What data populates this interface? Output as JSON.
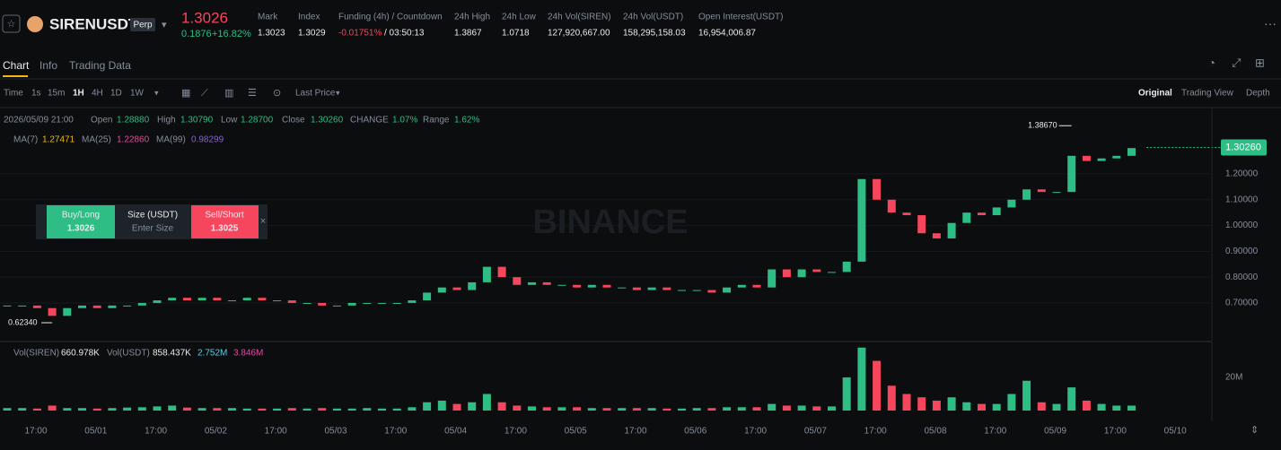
{
  "header": {
    "symbol": "SIRENUSDT",
    "tag": "Perp",
    "price": "1.3026",
    "change": "0.1876",
    "change_pct": "+16.82%",
    "stats": [
      {
        "label": "Mark",
        "value": "1.3023"
      },
      {
        "label": "Index",
        "value": "1.3029"
      },
      {
        "label": "Funding (4h) / Countdown",
        "value": "-0.01751%",
        "extra": "/ 03:50:13"
      },
      {
        "label": "24h High",
        "value": "1.3867"
      },
      {
        "label": "24h Low",
        "value": "1.0718"
      },
      {
        "label": "24h Vol(SIREN)",
        "value": "127,920,667.00"
      },
      {
        "label": "24h Vol(USDT)",
        "value": "158,295,158.03"
      },
      {
        "label": "Open Interest(USDT)",
        "value": "16,954,006.87"
      }
    ]
  },
  "tabs": [
    "Chart",
    "Info",
    "Trading Data"
  ],
  "toolbar": {
    "intervals": [
      "Time",
      "1s",
      "15m",
      "1H",
      "4H",
      "1D",
      "1W"
    ],
    "price_type": "Last Price",
    "views": [
      "Original",
      "Trading View",
      "Depth"
    ]
  },
  "legend": {
    "date": "2026/05/09 21:00",
    "open_label": "Open",
    "open": "1.28880",
    "high_label": "High",
    "high": "1.30790",
    "low_label": "Low",
    "low": "1.28700",
    "close_label": "Close",
    "close": "1.30260",
    "change_label": "CHANGE",
    "change": "1.07%",
    "range_label": "Range",
    "range": "1.62%",
    "ma7_label": "MA(7)",
    "ma7": "1.27471",
    "ma25_label": "MA(25)",
    "ma25": "1.22860",
    "ma99_label": "MA(99)",
    "ma99": "0.98299",
    "vol_label": "Vol(SIREN)",
    "vol": "660.978K",
    "volu_label": "Vol(USDT)",
    "volu": "858.437K",
    "vol_ma1": "2.752M",
    "vol_ma2": "3.846M"
  },
  "trade": {
    "buy": "Buy/Long",
    "buy_price": "1.3026",
    "size": "Size (USDT)",
    "placeholder": "Enter Size",
    "sell": "Sell/Short",
    "sell_price": "1.3025"
  },
  "watermark": "BINANCE",
  "chart": {
    "type": "candlestick",
    "closes": [
      0.69,
      0.69,
      0.68,
      0.65,
      0.68,
      0.69,
      0.68,
      0.69,
      0.69,
      0.7,
      0.71,
      0.72,
      0.71,
      0.72,
      0.71,
      0.71,
      0.72,
      0.71,
      0.71,
      0.7,
      0.7,
      0.69,
      0.69,
      0.7,
      0.7,
      0.7,
      0.7,
      0.71,
      0.74,
      0.76,
      0.75,
      0.78,
      0.84,
      0.8,
      0.77,
      0.78,
      0.77,
      0.77,
      0.76,
      0.77,
      0.76,
      0.76,
      0.75,
      0.76,
      0.75,
      0.75,
      0.75,
      0.74,
      0.76,
      0.77,
      0.76,
      0.83,
      0.8,
      0.83,
      0.82,
      0.82,
      0.86,
      1.18,
      1.1,
      1.05,
      1.04,
      0.97,
      0.95,
      1.01,
      1.05,
      1.04,
      1.07,
      1.1,
      1.14,
      1.13,
      1.13,
      1.27,
      1.25,
      1.26,
      1.27,
      1.3
    ],
    "volumes": [
      1500000,
      1500000,
      1200000,
      3000000,
      1500000,
      1500000,
      1200000,
      1500000,
      1800000,
      2000000,
      2500000,
      3000000,
      1800000,
      1500000,
      1500000,
      1500000,
      1200000,
      1200000,
      1200000,
      1500000,
      1200000,
      1500000,
      1200000,
      1200000,
      1500000,
      1200000,
      1200000,
      2000000,
      5000000,
      6000000,
      4000000,
      5000000,
      10000000,
      5000000,
      3000000,
      2500000,
      2000000,
      2000000,
      2000000,
      1500000,
      1500000,
      1500000,
      1500000,
      1500000,
      1200000,
      1200000,
      1500000,
      1500000,
      2000000,
      2000000,
      2000000,
      4000000,
      3000000,
      3000000,
      2500000,
      2500000,
      20000000,
      38000000,
      30000000,
      15000000,
      10000000,
      8000000,
      6000000,
      8000000,
      5000000,
      4000000,
      4000000,
      10000000,
      18000000,
      5000000,
      4000000,
      14000000,
      6000000,
      4000000,
      3000000,
      3000000
    ],
    "ylim": [
      0.554,
      1.45
    ],
    "yticks": [
      {
        "value": 0.7,
        "label": "0.70000"
      },
      {
        "value": 0.8,
        "label": "0.80000"
      },
      {
        "value": 0.9,
        "label": "0.90000"
      },
      {
        "value": 1.0,
        "label": "1.00000"
      },
      {
        "value": 1.1,
        "label": "1.10000"
      },
      {
        "value": 1.2,
        "label": "1.20000"
      }
    ],
    "high_marker": {
      "value": 1.3867,
      "label": "1.38670"
    },
    "low_marker": {
      "value": 0.6234,
      "label": "0.62340"
    },
    "last_price": {
      "value": 1.3026,
      "label": "1.30260"
    },
    "vol_ylim": [
      0,
      39500000
    ],
    "vol_yticks": [
      {
        "value": 20000000,
        "label": "20M"
      }
    ],
    "xlabels": [
      "17:00",
      "05/01",
      "17:00",
      "05/02",
      "17:00",
      "05/03",
      "17:00",
      "05/04",
      "17:00",
      "05/05",
      "17:00",
      "05/06",
      "17:00",
      "05/07",
      "17:00",
      "05/08",
      "17:00",
      "05/09",
      "17:00",
      "05/10"
    ],
    "up_color": "#2ebd85",
    "down_color": "#f6465d"
  }
}
